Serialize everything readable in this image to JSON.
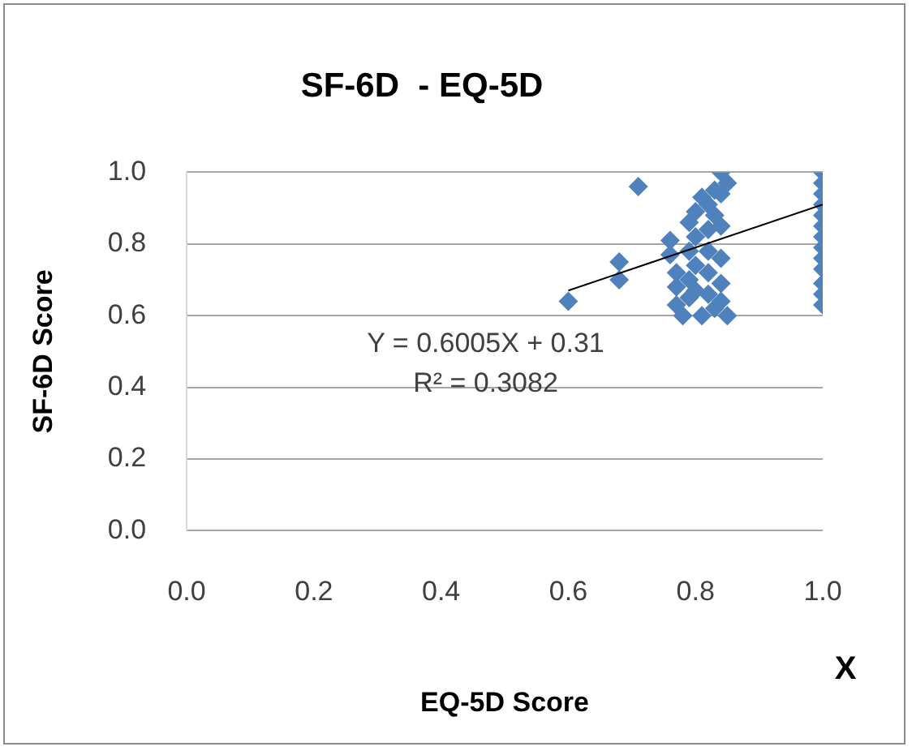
{
  "chart_data": {
    "type": "scatter",
    "title": "SF-6D  - EQ-5D",
    "xlabel": "EQ-5D Score",
    "ylabel": "SF-6D Score",
    "annotations": [
      "Y = 0.6005X + 0.31",
      "R² = 0.3082",
      "X"
    ],
    "xlim": [
      0,
      1
    ],
    "ylim": [
      0,
      1
    ],
    "xticks": [
      {
        "value": 0,
        "label": "0.0"
      },
      {
        "value": 0.2,
        "label": "0.2"
      },
      {
        "value": 0.4,
        "label": "0.4"
      },
      {
        "value": 0.6,
        "label": "0.6"
      },
      {
        "value": 0.8,
        "label": "0.8"
      },
      {
        "value": 1,
        "label": "1.0"
      }
    ],
    "yticks": [
      {
        "value": 0,
        "label": "0.0"
      },
      {
        "value": 0.2,
        "label": "0.2"
      },
      {
        "value": 0.4,
        "label": "0.4"
      },
      {
        "value": 0.6,
        "label": "0.6"
      },
      {
        "value": 0.8,
        "label": "0.8"
      },
      {
        "value": 1,
        "label": "1.0"
      }
    ],
    "grid": "y",
    "legend": false,
    "marker": "diamond",
    "series": [
      {
        "color": "#4f81bd",
        "x": [
          0.6,
          0.68,
          0.68,
          0.71,
          0.76,
          0.76,
          0.77,
          0.77,
          0.77,
          0.78,
          0.79,
          0.79,
          0.79,
          0.79,
          0.8,
          0.8,
          0.8,
          0.8,
          0.81,
          0.81,
          0.82,
          0.82,
          0.82,
          0.82,
          0.82,
          0.83,
          0.83,
          0.83,
          0.84,
          0.84,
          0.84,
          0.84,
          0.84,
          0.84,
          0.85,
          0.85,
          1,
          1,
          1,
          1,
          1,
          1,
          1,
          1,
          1,
          1,
          1,
          1,
          1
        ],
        "values": [
          0.64,
          0.75,
          0.7,
          0.96,
          0.81,
          0.77,
          0.72,
          0.68,
          0.63,
          0.6,
          0.86,
          0.78,
          0.7,
          0.65,
          0.89,
          0.82,
          0.74,
          0.67,
          0.93,
          0.6,
          0.91,
          0.84,
          0.78,
          0.72,
          0.66,
          0.95,
          0.88,
          0.62,
          1.0,
          0.94,
          0.85,
          0.76,
          0.69,
          0.64,
          0.97,
          0.6,
          1.0,
          0.97,
          0.94,
          0.91,
          0.88,
          0.85,
          0.82,
          0.79,
          0.76,
          0.73,
          0.69,
          0.66,
          0.63
        ]
      },
      {
        "type": "line",
        "color": "#000000",
        "marker": "none",
        "line_style": "solid",
        "x": [
          0.6,
          1.0
        ],
        "values": [
          0.67,
          0.91
        ]
      }
    ]
  }
}
